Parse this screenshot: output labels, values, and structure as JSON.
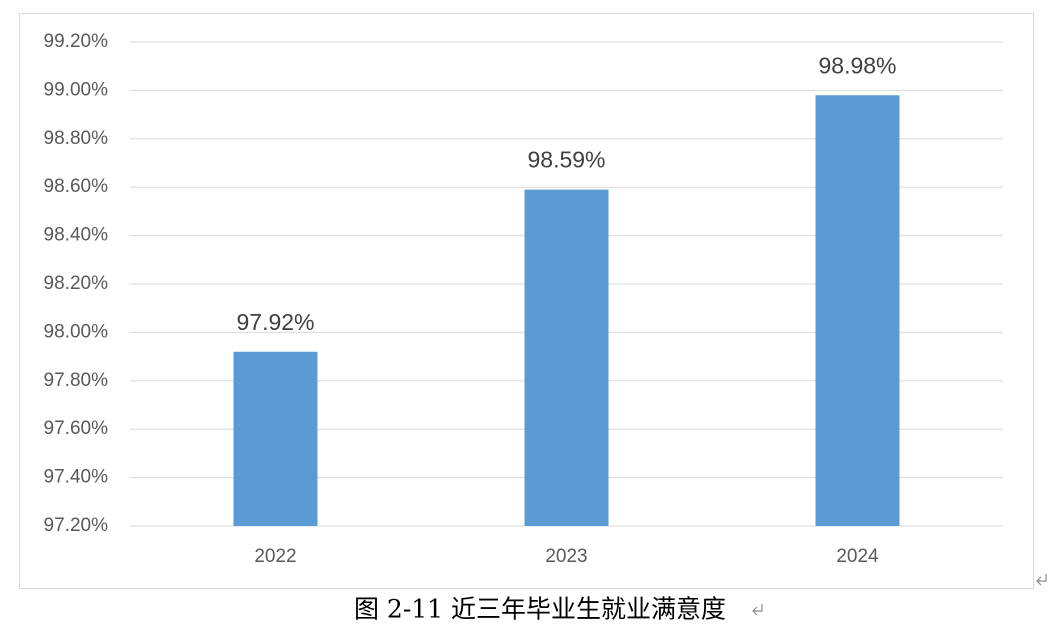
{
  "chart_data": {
    "type": "bar",
    "caption": "图 2-11  近三年毕业生就业满意度",
    "categories": [
      "2022",
      "2023",
      "2024"
    ],
    "values": [
      97.92,
      98.59,
      98.98
    ],
    "value_labels": [
      "97.92%",
      "98.59%",
      "98.98%"
    ],
    "color": "#5b9bd5",
    "ylim": [
      97.2,
      99.2
    ],
    "yticks": [
      {
        "value": 97.2,
        "label": "97.20%"
      },
      {
        "value": 97.4,
        "label": "97.40%"
      },
      {
        "value": 97.6,
        "label": "97.60%"
      },
      {
        "value": 97.8,
        "label": "97.80%"
      },
      {
        "value": 98.0,
        "label": "98.00%"
      },
      {
        "value": 98.2,
        "label": "98.20%"
      },
      {
        "value": 98.4,
        "label": "98.40%"
      },
      {
        "value": 98.6,
        "label": "98.60%"
      },
      {
        "value": 98.8,
        "label": "98.80%"
      },
      {
        "value": 99.0,
        "label": "99.00%"
      },
      {
        "value": 99.2,
        "label": "99.20%"
      }
    ],
    "grid": true
  }
}
